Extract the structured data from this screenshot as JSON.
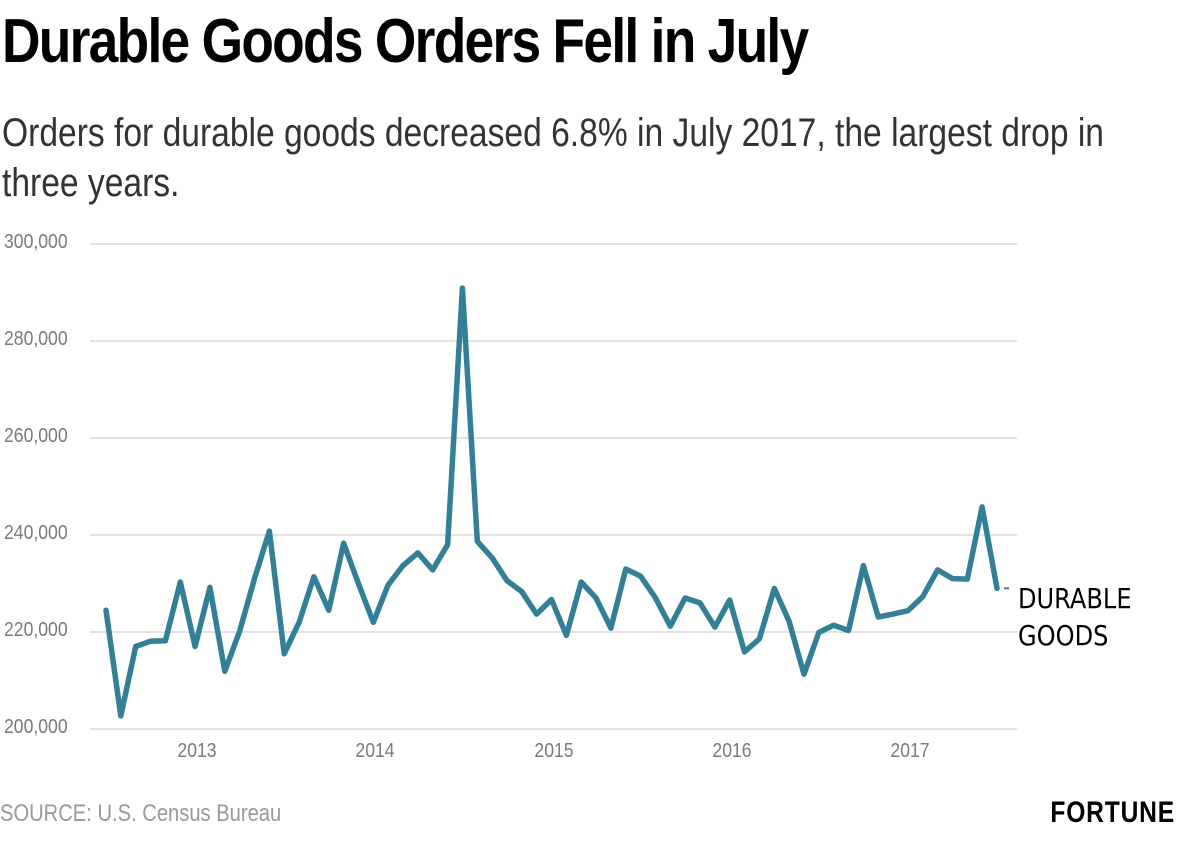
{
  "header": {
    "title": "Durable Goods Orders Fell in July",
    "subtitle": "Orders for durable goods decreased 6.8% in July 2017, the largest drop in three years."
  },
  "footer": {
    "source": "SOURCE: U.S. Census Bureau",
    "brand": "FORTUNE"
  },
  "colors": {
    "line": "#347f98",
    "grid": "#e3e3e3",
    "tick_text": "#7a7a7a"
  },
  "chart_data": {
    "type": "line",
    "title": "Durable Goods Orders Fell in July",
    "subtitle": "Orders for durable goods decreased 6.8% in July 2017, the largest drop in three years.",
    "xlabel": "",
    "ylabel": "",
    "ylim": [
      200000,
      300000
    ],
    "yticks": [
      200000,
      220000,
      240000,
      260000,
      280000,
      300000
    ],
    "ytick_labels": [
      "200,000",
      "220,000",
      "240,000",
      "260,000",
      "280,000",
      "300,000"
    ],
    "xticks": [
      "2013",
      "2014",
      "2015",
      "2016",
      "2017"
    ],
    "xtick_positions": [
      6,
      18,
      30,
      42,
      54
    ],
    "x_start": "2012-07",
    "x_end": "2017-07",
    "grid": true,
    "legend": "direct label at line end (right)",
    "series": [
      {
        "name": "DURABLE GOODS",
        "label_lines": [
          "DURABLE",
          "GOODS"
        ],
        "x": [
          "2012-07",
          "2012-08",
          "2012-09",
          "2012-10",
          "2012-11",
          "2012-12",
          "2013-01",
          "2013-02",
          "2013-03",
          "2013-04",
          "2013-05",
          "2013-06",
          "2013-07",
          "2013-08",
          "2013-09",
          "2013-10",
          "2013-11",
          "2013-12",
          "2014-01",
          "2014-02",
          "2014-03",
          "2014-04",
          "2014-05",
          "2014-06",
          "2014-07",
          "2014-08",
          "2014-09",
          "2014-10",
          "2014-11",
          "2014-12",
          "2015-01",
          "2015-02",
          "2015-03",
          "2015-04",
          "2015-05",
          "2015-06",
          "2015-07",
          "2015-08",
          "2015-09",
          "2015-10",
          "2015-11",
          "2015-12",
          "2016-01",
          "2016-02",
          "2016-03",
          "2016-04",
          "2016-05",
          "2016-06",
          "2016-07",
          "2016-08",
          "2016-09",
          "2016-10",
          "2016-11",
          "2016-12",
          "2017-01",
          "2017-02",
          "2017-03",
          "2017-04",
          "2017-05",
          "2017-06",
          "2017-07"
        ],
        "values": [
          224500,
          202700,
          217000,
          218100,
          218200,
          230300,
          217000,
          229200,
          211900,
          220200,
          231000,
          240800,
          215500,
          222000,
          231400,
          224500,
          238300,
          230000,
          222000,
          229700,
          233700,
          236300,
          232800,
          238000,
          290900,
          238700,
          235300,
          230600,
          228300,
          223700,
          226700,
          219300,
          230300,
          227000,
          220800,
          233000,
          231500,
          227000,
          221200,
          227000,
          226000,
          221000,
          226600,
          215900,
          218600,
          229000,
          222200,
          211300,
          219900,
          221400,
          220300,
          233700,
          223100,
          223700,
          224400,
          227300,
          232800,
          231000,
          230900,
          245800,
          229000
        ]
      }
    ]
  }
}
